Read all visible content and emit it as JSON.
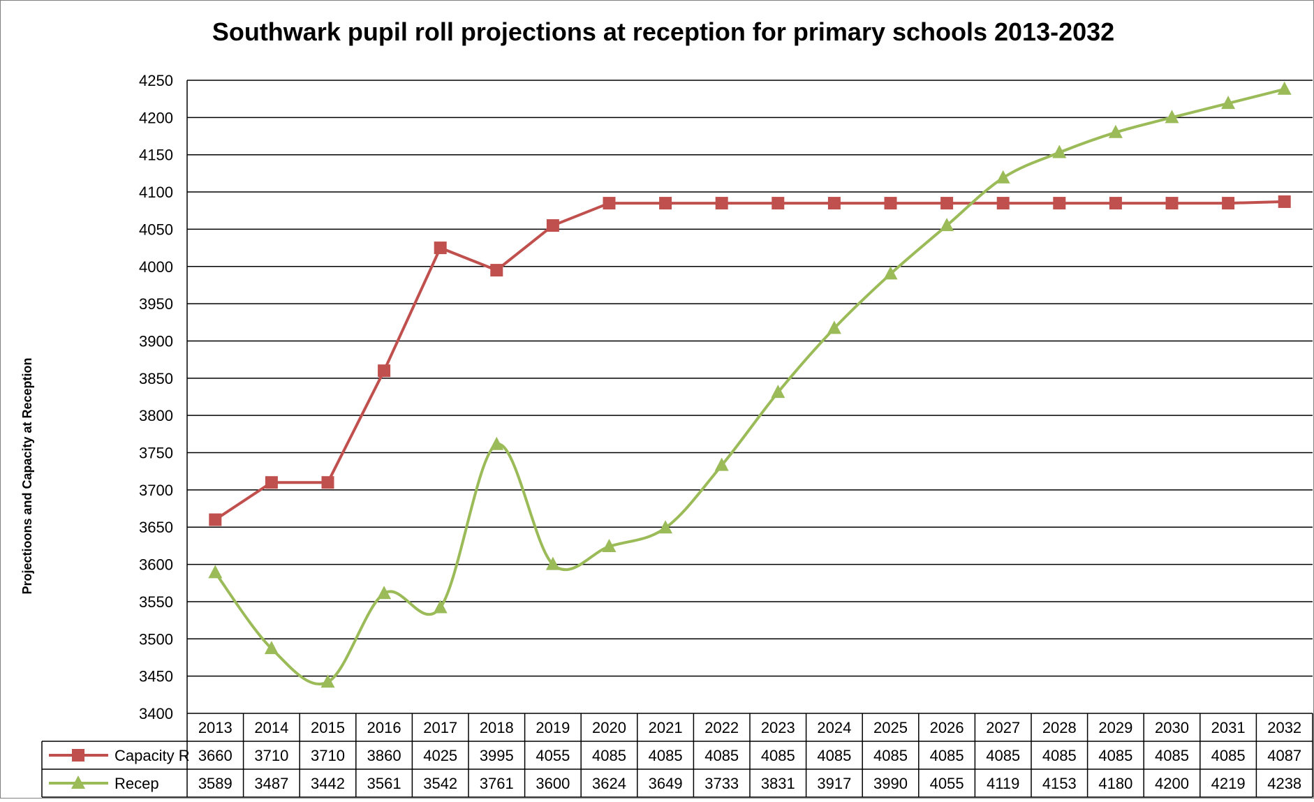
{
  "chart_data": {
    "type": "line",
    "title": "Southwark pupil roll projections at reception for primary schools 2013-2032",
    "ylabel": "Projectioons and Capacity at Reception",
    "xlabel": "",
    "ylim": [
      3400,
      4250
    ],
    "yticks": [
      3400,
      3450,
      3500,
      3550,
      3600,
      3650,
      3700,
      3750,
      3800,
      3850,
      3900,
      3950,
      4000,
      4050,
      4100,
      4150,
      4200,
      4250
    ],
    "grid": true,
    "legend": "data table below the chart",
    "categories": [
      "2013",
      "2014",
      "2015",
      "2016",
      "2017",
      "2018",
      "2019",
      "2020",
      "2021",
      "2022",
      "2023",
      "2024",
      "2025",
      "2026",
      "2027",
      "2028",
      "2029",
      "2030",
      "2031",
      "2032"
    ],
    "series": [
      {
        "name": "Capacity R",
        "color": "#c0504d",
        "marker": "square",
        "smooth": false,
        "values": [
          3660,
          3710,
          3710,
          3860,
          4025,
          3995,
          4055,
          4085,
          4085,
          4085,
          4085,
          4085,
          4085,
          4085,
          4085,
          4085,
          4085,
          4085,
          4085,
          4087
        ]
      },
      {
        "name": "Recep",
        "color": "#9bbb59",
        "marker": "triangle",
        "smooth": true,
        "values": [
          3589,
          3487,
          3442,
          3561,
          3542,
          3761,
          3600,
          3624,
          3649,
          3733,
          3831,
          3917,
          3990,
          4055,
          4119,
          4153,
          4180,
          4200,
          4219,
          4238
        ]
      }
    ]
  }
}
